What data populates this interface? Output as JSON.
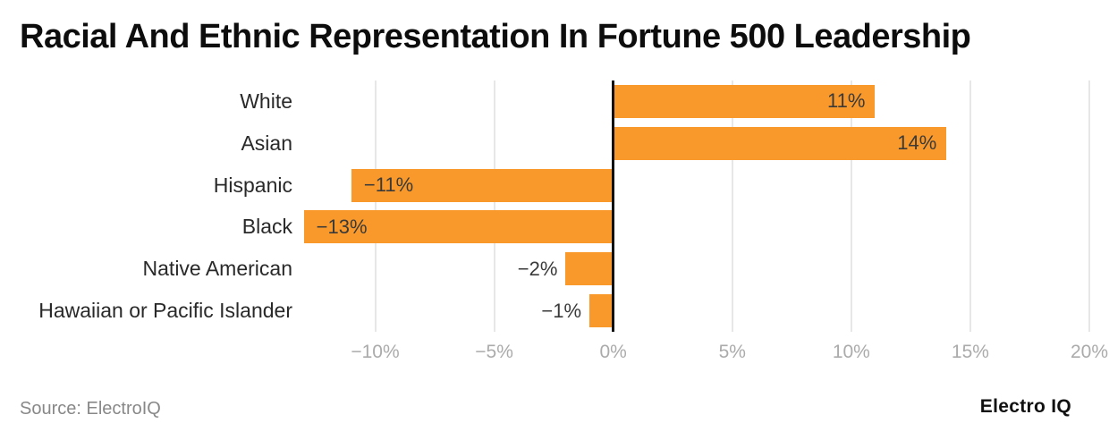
{
  "title": "Racial And Ethnic Representation In Fortune 500 Leadership",
  "footer": {
    "source": "Source: ElectroIQ",
    "brand": "Electro IQ"
  },
  "colors": {
    "bar": "#F9992B",
    "gridline": "#E7E7E7",
    "zero_line": "#111111",
    "tick_label": "#ABABAB",
    "category_label": "#292929",
    "value_label": "#3A3A3A",
    "title": "#0D0D0D",
    "source": "#888888"
  },
  "chart_data": {
    "type": "bar",
    "orientation": "horizontal",
    "title": "Racial And Ethnic Representation In Fortune 500 Leadership",
    "xlabel": "",
    "ylabel": "",
    "categories": [
      "White",
      "Asian",
      "Hispanic",
      "Black",
      "Native American",
      "Hawaiian or Pacific Islander"
    ],
    "values": [
      11,
      14,
      -11,
      -13,
      -2,
      -1
    ],
    "value_labels": [
      "11%",
      "14%",
      "−11%",
      "−13%",
      "−2%",
      "−1%"
    ],
    "label_placement": [
      "inside-end",
      "inside-end",
      "inside-start",
      "inside-start",
      "outside-start",
      "outside-start"
    ],
    "xlim": [
      -13.1,
      20
    ],
    "xticks": [
      -10,
      -5,
      0,
      5,
      10,
      15,
      20
    ],
    "xtick_labels": [
      "−10%",
      "−5%",
      "0%",
      "5%",
      "10%",
      "15%",
      "20%"
    ],
    "grid": "vertical",
    "legend": false,
    "source": "ElectroIQ"
  }
}
